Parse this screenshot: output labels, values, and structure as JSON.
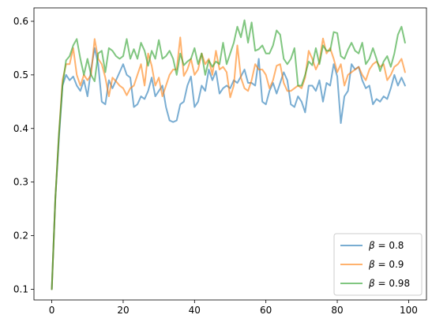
{
  "chart_data": {
    "type": "line",
    "title": "",
    "xlabel": "",
    "ylabel": "",
    "xlim": [
      -5,
      105
    ],
    "ylim": [
      0.08,
      0.625
    ],
    "xticks": [
      0,
      20,
      40,
      60,
      80,
      100
    ],
    "yticks": [
      0.1,
      0.2,
      0.3,
      0.4,
      0.5,
      0.6
    ],
    "xtick_labels": [
      "0",
      "20",
      "40",
      "60",
      "80",
      "100"
    ],
    "ytick_labels": [
      "0.1",
      "0.2",
      "0.3",
      "0.4",
      "0.5",
      "0.6"
    ],
    "grid": false,
    "legend_position": "bottom-right",
    "series": [
      {
        "name": "β = 0.8",
        "legend_greek": "β",
        "legend_rest": " = 0.8",
        "color": "#1f77b4",
        "x": [
          0,
          1,
          2,
          3,
          4,
          5,
          6,
          7,
          8,
          9,
          10,
          11,
          12,
          13,
          14,
          15,
          16,
          17,
          18,
          19,
          20,
          21,
          22,
          23,
          24,
          25,
          26,
          27,
          28,
          29,
          30,
          31,
          32,
          33,
          34,
          35,
          36,
          37,
          38,
          39,
          40,
          41,
          42,
          43,
          44,
          45,
          46,
          47,
          48,
          49,
          50,
          51,
          52,
          53,
          54,
          55,
          56,
          57,
          58,
          59,
          60,
          61,
          62,
          63,
          64,
          65,
          66,
          67,
          68,
          69,
          70,
          71,
          72,
          73,
          74,
          75,
          76,
          77,
          78,
          79,
          80,
          81,
          82,
          83,
          84,
          85,
          86,
          87,
          88,
          89,
          90,
          91,
          92,
          93,
          94,
          95,
          96,
          97,
          98,
          99
        ],
        "y": [
          0.1,
          0.27,
          0.38,
          0.48,
          0.5,
          0.49,
          0.497,
          0.48,
          0.47,
          0.49,
          0.46,
          0.51,
          0.55,
          0.52,
          0.45,
          0.445,
          0.49,
          0.475,
          0.49,
          0.505,
          0.52,
          0.5,
          0.495,
          0.44,
          0.445,
          0.46,
          0.455,
          0.47,
          0.495,
          0.46,
          0.47,
          0.48,
          0.44,
          0.415,
          0.412,
          0.415,
          0.445,
          0.45,
          0.48,
          0.497,
          0.44,
          0.45,
          0.48,
          0.47,
          0.51,
          0.49,
          0.507,
          0.465,
          0.475,
          0.48,
          0.475,
          0.49,
          0.485,
          0.497,
          0.51,
          0.485,
          0.485,
          0.48,
          0.53,
          0.45,
          0.445,
          0.47,
          0.485,
          0.465,
          0.485,
          0.505,
          0.49,
          0.445,
          0.44,
          0.46,
          0.45,
          0.43,
          0.48,
          0.48,
          0.47,
          0.49,
          0.45,
          0.485,
          0.48,
          0.52,
          0.497,
          0.41,
          0.46,
          0.47,
          0.52,
          0.51,
          0.515,
          0.49,
          0.475,
          0.48,
          0.445,
          0.455,
          0.45,
          0.46,
          0.455,
          0.475,
          0.5,
          0.48,
          0.495,
          0.48
        ]
      },
      {
        "name": "β = 0.9",
        "legend_greek": "β",
        "legend_rest": " = 0.9",
        "color": "#ff7f0e",
        "x": [
          0,
          1,
          2,
          3,
          4,
          5,
          6,
          7,
          8,
          9,
          10,
          11,
          12,
          13,
          14,
          15,
          16,
          17,
          18,
          19,
          20,
          21,
          22,
          23,
          24,
          25,
          26,
          27,
          28,
          29,
          30,
          31,
          32,
          33,
          34,
          35,
          36,
          37,
          38,
          39,
          40,
          41,
          42,
          43,
          44,
          45,
          46,
          47,
          48,
          49,
          50,
          51,
          52,
          53,
          54,
          55,
          56,
          57,
          58,
          59,
          60,
          61,
          62,
          63,
          64,
          65,
          66,
          67,
          68,
          69,
          70,
          71,
          72,
          73,
          74,
          75,
          76,
          77,
          78,
          79,
          80,
          81,
          82,
          83,
          84,
          85,
          86,
          87,
          88,
          89,
          90,
          91,
          92,
          93,
          94,
          95,
          96,
          97,
          98,
          99
        ],
        "y": [
          0.1,
          0.27,
          0.39,
          0.49,
          0.52,
          0.52,
          0.55,
          0.5,
          0.48,
          0.5,
          0.49,
          0.5,
          0.567,
          0.53,
          0.52,
          0.495,
          0.46,
          0.495,
          0.488,
          0.48,
          0.475,
          0.462,
          0.475,
          0.48,
          0.5,
          0.52,
          0.48,
          0.54,
          0.517,
          0.48,
          0.495,
          0.46,
          0.48,
          0.5,
          0.51,
          0.51,
          0.57,
          0.498,
          0.51,
          0.53,
          0.5,
          0.51,
          0.54,
          0.52,
          0.53,
          0.5,
          0.545,
          0.51,
          0.515,
          0.505,
          0.458,
          0.48,
          0.555,
          0.495,
          0.475,
          0.47,
          0.49,
          0.52,
          0.51,
          0.51,
          0.5,
          0.475,
          0.49,
          0.517,
          0.52,
          0.485,
          0.47,
          0.47,
          0.475,
          0.48,
          0.475,
          0.495,
          0.545,
          0.53,
          0.51,
          0.525,
          0.568,
          0.54,
          0.55,
          0.53,
          0.505,
          0.52,
          0.48,
          0.5,
          0.505,
          0.51,
          0.515,
          0.5,
          0.49,
          0.51,
          0.52,
          0.525,
          0.515,
          0.52,
          0.49,
          0.5,
          0.515,
          0.52,
          0.53,
          0.505
        ]
      },
      {
        "name": "β = 0.98",
        "legend_greek": "β",
        "legend_rest": " = 0.98",
        "color": "#2ca02c",
        "x": [
          0,
          1,
          2,
          3,
          4,
          5,
          6,
          7,
          8,
          9,
          10,
          11,
          12,
          13,
          14,
          15,
          16,
          17,
          18,
          19,
          20,
          21,
          22,
          23,
          24,
          25,
          26,
          27,
          28,
          29,
          30,
          31,
          32,
          33,
          34,
          35,
          36,
          37,
          38,
          39,
          40,
          41,
          42,
          43,
          44,
          45,
          46,
          47,
          48,
          49,
          50,
          51,
          52,
          53,
          54,
          55,
          56,
          57,
          58,
          59,
          60,
          61,
          62,
          63,
          64,
          65,
          66,
          67,
          68,
          69,
          70,
          71,
          72,
          73,
          74,
          75,
          76,
          77,
          78,
          79,
          80,
          81,
          82,
          83,
          84,
          85,
          86,
          87,
          88,
          89,
          90,
          91,
          92,
          93,
          94,
          95,
          96,
          97,
          98,
          99
        ],
        "y": [
          0.1,
          0.27,
          0.39,
          0.48,
          0.527,
          0.535,
          0.555,
          0.567,
          0.53,
          0.5,
          0.53,
          0.5,
          0.488,
          0.54,
          0.545,
          0.505,
          0.55,
          0.545,
          0.535,
          0.53,
          0.535,
          0.567,
          0.53,
          0.548,
          0.53,
          0.56,
          0.545,
          0.517,
          0.545,
          0.53,
          0.565,
          0.53,
          0.535,
          0.545,
          0.53,
          0.5,
          0.54,
          0.518,
          0.525,
          0.53,
          0.55,
          0.52,
          0.54,
          0.5,
          0.527,
          0.515,
          0.525,
          0.52,
          0.56,
          0.52,
          0.54,
          0.56,
          0.59,
          0.57,
          0.602,
          0.56,
          0.598,
          0.545,
          0.548,
          0.555,
          0.54,
          0.54,
          0.555,
          0.583,
          0.575,
          0.53,
          0.52,
          0.53,
          0.55,
          0.48,
          0.48,
          0.5,
          0.525,
          0.518,
          0.55,
          0.52,
          0.555,
          0.545,
          0.545,
          0.58,
          0.578,
          0.535,
          0.53,
          0.547,
          0.56,
          0.545,
          0.54,
          0.56,
          0.52,
          0.53,
          0.55,
          0.53,
          0.507,
          0.525,
          0.535,
          0.515,
          0.54,
          0.575,
          0.59,
          0.56
        ]
      }
    ]
  }
}
